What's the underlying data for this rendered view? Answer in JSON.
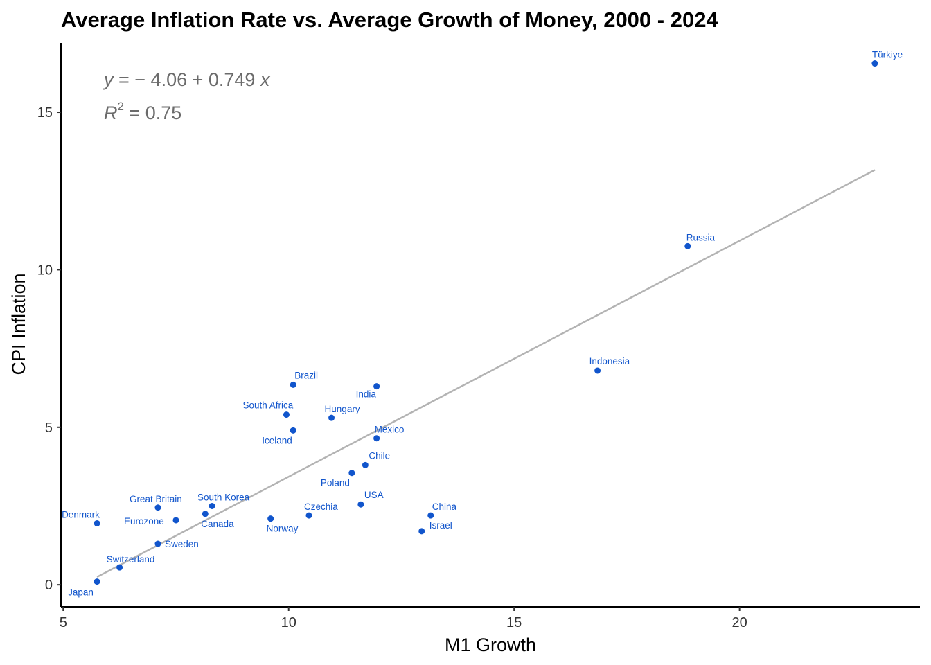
{
  "chart_data": {
    "type": "scatter",
    "title": "Average Inflation Rate vs. Average Growth of Money, 2000 - 2024",
    "xlabel": "M1 Growth",
    "ylabel": "CPI Inflation",
    "xlim": [
      4.95,
      24.0
    ],
    "ylim": [
      -0.7,
      17.2
    ],
    "xticks": [
      5,
      10,
      15,
      20
    ],
    "yticks": [
      0,
      5,
      10,
      15
    ],
    "grid": false,
    "point_color": "#1155cc",
    "fit_color": "#b3b3b3",
    "fit": {
      "intercept": -4.06,
      "slope": 0.749,
      "x_range": [
        5.75,
        23.0
      ],
      "equation_text": "y = − 4.06 + 0.749 x",
      "r2_text": "R2 = 0.75",
      "r2_value": "0.75"
    },
    "points": [
      {
        "label": "Türkiye",
        "x": 23.0,
        "y": 16.55
      },
      {
        "label": "Russia",
        "x": 18.85,
        "y": 10.75
      },
      {
        "label": "Indonesia",
        "x": 16.85,
        "y": 6.8
      },
      {
        "label": "Brazil",
        "x": 10.1,
        "y": 6.35
      },
      {
        "label": "India",
        "x": 11.95,
        "y": 6.3
      },
      {
        "label": "South Africa",
        "x": 9.95,
        "y": 5.4
      },
      {
        "label": "Hungary",
        "x": 10.95,
        "y": 5.3
      },
      {
        "label": "Iceland",
        "x": 10.1,
        "y": 4.9
      },
      {
        "label": "Mexico",
        "x": 11.95,
        "y": 4.65
      },
      {
        "label": "Chile",
        "x": 11.7,
        "y": 3.8
      },
      {
        "label": "Poland",
        "x": 11.4,
        "y": 3.55
      },
      {
        "label": "USA",
        "x": 11.6,
        "y": 2.55
      },
      {
        "label": "Czechia",
        "x": 10.45,
        "y": 2.2
      },
      {
        "label": "China",
        "x": 13.15,
        "y": 2.2
      },
      {
        "label": "Israel",
        "x": 12.95,
        "y": 1.7
      },
      {
        "label": "Norway",
        "x": 9.6,
        "y": 2.1
      },
      {
        "label": "South Korea",
        "x": 8.3,
        "y": 2.5
      },
      {
        "label": "Canada",
        "x": 8.15,
        "y": 2.25
      },
      {
        "label": "Great Britain",
        "x": 7.1,
        "y": 2.45
      },
      {
        "label": "Eurozone",
        "x": 7.5,
        "y": 2.05
      },
      {
        "label": "Sweden",
        "x": 7.1,
        "y": 1.3
      },
      {
        "label": "Denmark",
        "x": 5.75,
        "y": 1.95
      },
      {
        "label": "Switzerland",
        "x": 6.25,
        "y": 0.55
      },
      {
        "label": "Japan",
        "x": 5.75,
        "y": 0.1
      }
    ]
  }
}
